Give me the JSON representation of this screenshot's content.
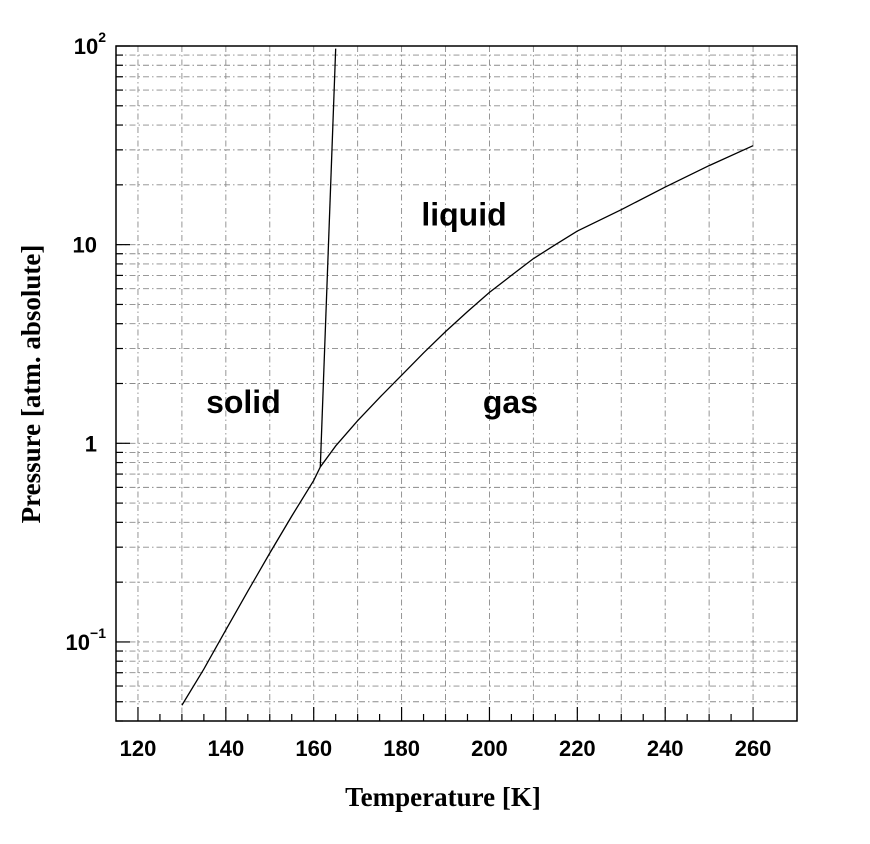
{
  "chart_data": {
    "type": "line",
    "title": "",
    "xlabel": "Temperature  [K]",
    "ylabel": "Pressure  [atm. absolute]",
    "xlim": [
      115,
      270
    ],
    "ylim": [
      0.04,
      100
    ],
    "yscale": "log",
    "grid": true,
    "x_ticks": [
      120,
      140,
      160,
      180,
      200,
      220,
      240,
      260
    ],
    "x_tick_labels": [
      "120",
      "140",
      "160",
      "180",
      "200",
      "220",
      "240",
      "260"
    ],
    "y_ticks": [
      {
        "value": 0.1,
        "base": "10",
        "exp": "−1"
      },
      {
        "value": 1,
        "base": "1",
        "exp": ""
      },
      {
        "value": 10,
        "base": "10",
        "exp": ""
      },
      {
        "value": 100,
        "base": "10",
        "exp": "2"
      }
    ],
    "series": [
      {
        "x": [
          130,
          135,
          140,
          145,
          150,
          155,
          160,
          161.5,
          165,
          170,
          175,
          180,
          185,
          190,
          195,
          200,
          205,
          210,
          215,
          220,
          230,
          240,
          250,
          260
        ],
        "y": [
          0.048,
          0.073,
          0.115,
          0.18,
          0.28,
          0.43,
          0.65,
          0.76,
          0.97,
          1.3,
          1.7,
          2.2,
          2.85,
          3.65,
          4.6,
          5.75,
          7.0,
          8.5,
          10.0,
          11.7,
          15.0,
          19.5,
          25.0,
          31.5
        ]
      },
      {
        "x": [
          161.5,
          165
        ],
        "y": [
          0.76,
          97
        ]
      }
    ],
    "annotations": [
      {
        "text": "solid",
        "x": 135.5,
        "y": 1.42
      },
      {
        "text": "liquid",
        "x": 184.5,
        "y": 12.5
      },
      {
        "text": "gas",
        "x": 198.5,
        "y": 1.42
      }
    ]
  }
}
